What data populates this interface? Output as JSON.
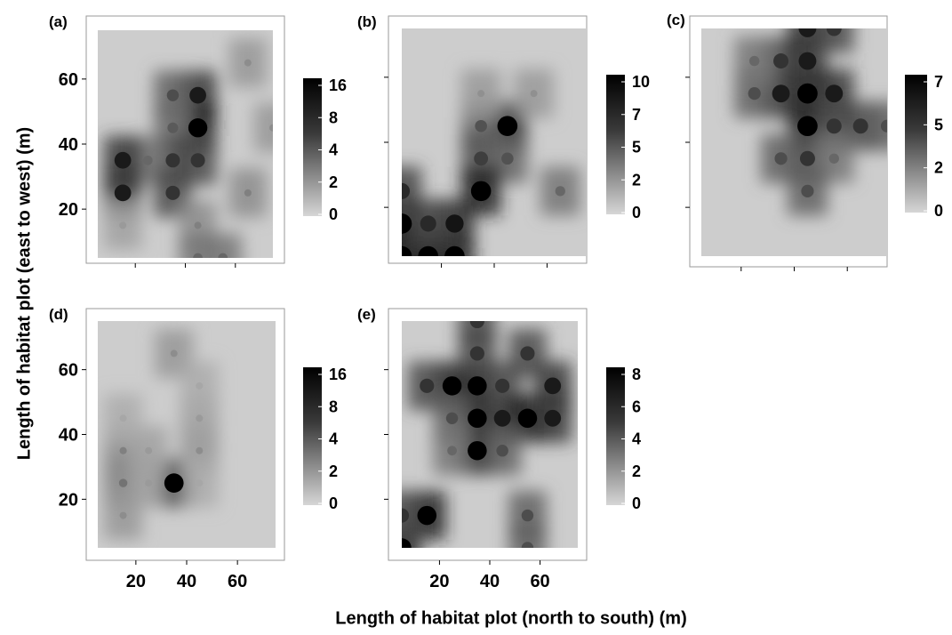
{
  "figure": {
    "ylabel": "Length of habitat plot (east to west) (m)",
    "xlabel": "Length of habitat plot (north to south) (m)",
    "x_ticks": [
      20,
      40,
      60
    ],
    "y_ticks": [
      20,
      40,
      60
    ]
  },
  "chart_data": [
    {
      "type": "heatmap",
      "panel_label": "(a)",
      "x_range": [
        5,
        75
      ],
      "y_range": [
        5,
        75
      ],
      "y_tick_labels_shown": true,
      "x_tick_labels_shown": false,
      "colorbar": {
        "ticks": [
          "16",
          "8",
          "4",
          "2",
          "0"
        ],
        "max": 16
      },
      "hotspots": [
        {
          "x": 45,
          "y": 55,
          "value": 14
        },
        {
          "x": 45,
          "y": 45,
          "value": 16
        },
        {
          "x": 35,
          "y": 55,
          "value": 10
        },
        {
          "x": 35,
          "y": 45,
          "value": 9
        },
        {
          "x": 45,
          "y": 35,
          "value": 12
        },
        {
          "x": 35,
          "y": 35,
          "value": 12
        },
        {
          "x": 25,
          "y": 35,
          "value": 8
        },
        {
          "x": 15,
          "y": 35,
          "value": 14
        },
        {
          "x": 15,
          "y": 25,
          "value": 14
        },
        {
          "x": 35,
          "y": 25,
          "value": 12
        },
        {
          "x": 65,
          "y": 25,
          "value": 6
        },
        {
          "x": 45,
          "y": 15,
          "value": 6
        },
        {
          "x": 15,
          "y": 15,
          "value": 4
        },
        {
          "x": 45,
          "y": 5,
          "value": 8
        },
        {
          "x": 55,
          "y": 5,
          "value": 8
        },
        {
          "x": 65,
          "y": 65,
          "value": 5
        },
        {
          "x": 75,
          "y": 45,
          "value": 5
        }
      ]
    },
    {
      "type": "heatmap",
      "panel_label": "(b)",
      "x_range": [
        5,
        75
      ],
      "y_range": [
        5,
        75
      ],
      "y_tick_labels_shown": false,
      "x_tick_labels_shown": false,
      "colorbar": {
        "ticks": [
          "10",
          "7",
          "5",
          "2",
          "0"
        ],
        "max": 10
      },
      "hotspots": [
        {
          "x": 45,
          "y": 45,
          "value": 10
        },
        {
          "x": 35,
          "y": 45,
          "value": 6
        },
        {
          "x": 35,
          "y": 35,
          "value": 7
        },
        {
          "x": 45,
          "y": 35,
          "value": 6
        },
        {
          "x": 35,
          "y": 25,
          "value": 10
        },
        {
          "x": 5,
          "y": 15,
          "value": 10
        },
        {
          "x": 5,
          "y": 5,
          "value": 10
        },
        {
          "x": 15,
          "y": 5,
          "value": 10
        },
        {
          "x": 25,
          "y": 5,
          "value": 10
        },
        {
          "x": 25,
          "y": 15,
          "value": 9
        },
        {
          "x": 15,
          "y": 15,
          "value": 8
        },
        {
          "x": 5,
          "y": 25,
          "value": 8
        },
        {
          "x": 65,
          "y": 25,
          "value": 5
        },
        {
          "x": 35,
          "y": 55,
          "value": 3
        },
        {
          "x": 55,
          "y": 55,
          "value": 3
        }
      ]
    },
    {
      "type": "heatmap",
      "panel_label": "(c)",
      "x_range": [
        5,
        75
      ],
      "y_range": [
        5,
        75
      ],
      "y_tick_labels_shown": false,
      "x_tick_labels_shown": false,
      "colorbar": {
        "ticks": [
          "7",
          "5",
          "2",
          "0"
        ],
        "max": 8
      },
      "hotspots": [
        {
          "x": 45,
          "y": 45,
          "value": 8
        },
        {
          "x": 45,
          "y": 55,
          "value": 8
        },
        {
          "x": 35,
          "y": 55,
          "value": 7
        },
        {
          "x": 55,
          "y": 55,
          "value": 7
        },
        {
          "x": 35,
          "y": 65,
          "value": 6
        },
        {
          "x": 45,
          "y": 65,
          "value": 7
        },
        {
          "x": 45,
          "y": 75,
          "value": 7
        },
        {
          "x": 55,
          "y": 75,
          "value": 6
        },
        {
          "x": 25,
          "y": 55,
          "value": 5
        },
        {
          "x": 25,
          "y": 65,
          "value": 4
        },
        {
          "x": 55,
          "y": 45,
          "value": 6
        },
        {
          "x": 65,
          "y": 45,
          "value": 6
        },
        {
          "x": 45,
          "y": 35,
          "value": 6
        },
        {
          "x": 35,
          "y": 35,
          "value": 5
        },
        {
          "x": 55,
          "y": 35,
          "value": 4
        },
        {
          "x": 45,
          "y": 25,
          "value": 5
        },
        {
          "x": 75,
          "y": 45,
          "value": 5
        }
      ]
    },
    {
      "type": "heatmap",
      "panel_label": "(d)",
      "x_range": [
        5,
        75
      ],
      "y_range": [
        5,
        75
      ],
      "y_tick_labels_shown": true,
      "x_tick_labels_shown": true,
      "colorbar": {
        "ticks": [
          "16",
          "8",
          "4",
          "2",
          "0"
        ],
        "max": 16
      },
      "hotspots": [
        {
          "x": 35,
          "y": 25,
          "value": 16
        },
        {
          "x": 15,
          "y": 25,
          "value": 7
        },
        {
          "x": 15,
          "y": 35,
          "value": 6
        },
        {
          "x": 25,
          "y": 35,
          "value": 4
        },
        {
          "x": 45,
          "y": 35,
          "value": 5
        },
        {
          "x": 45,
          "y": 45,
          "value": 4
        },
        {
          "x": 15,
          "y": 45,
          "value": 3
        },
        {
          "x": 15,
          "y": 15,
          "value": 5
        },
        {
          "x": 35,
          "y": 65,
          "value": 5
        },
        {
          "x": 45,
          "y": 55,
          "value": 3
        },
        {
          "x": 25,
          "y": 25,
          "value": 4
        },
        {
          "x": 45,
          "y": 25,
          "value": 3
        }
      ]
    },
    {
      "type": "heatmap",
      "panel_label": "(e)",
      "x_range": [
        5,
        75
      ],
      "y_range": [
        5,
        75
      ],
      "y_tick_labels_shown": false,
      "x_tick_labels_shown": true,
      "colorbar": {
        "ticks": [
          "8",
          "6",
          "4",
          "2",
          "0"
        ],
        "max": 8
      },
      "hotspots": [
        {
          "x": 35,
          "y": 35,
          "value": 8
        },
        {
          "x": 35,
          "y": 45,
          "value": 8
        },
        {
          "x": 35,
          "y": 55,
          "value": 8
        },
        {
          "x": 45,
          "y": 45,
          "value": 7
        },
        {
          "x": 45,
          "y": 55,
          "value": 6
        },
        {
          "x": 25,
          "y": 55,
          "value": 8
        },
        {
          "x": 15,
          "y": 55,
          "value": 6
        },
        {
          "x": 35,
          "y": 65,
          "value": 6
        },
        {
          "x": 35,
          "y": 75,
          "value": 6
        },
        {
          "x": 55,
          "y": 45,
          "value": 8
        },
        {
          "x": 65,
          "y": 45,
          "value": 7
        },
        {
          "x": 65,
          "y": 55,
          "value": 7
        },
        {
          "x": 55,
          "y": 65,
          "value": 6
        },
        {
          "x": 45,
          "y": 35,
          "value": 5
        },
        {
          "x": 25,
          "y": 45,
          "value": 5
        },
        {
          "x": 5,
          "y": 5,
          "value": 8
        },
        {
          "x": 15,
          "y": 15,
          "value": 8
        },
        {
          "x": 5,
          "y": 15,
          "value": 6
        },
        {
          "x": 25,
          "y": 35,
          "value": 4
        },
        {
          "x": 55,
          "y": 15,
          "value": 5
        },
        {
          "x": 55,
          "y": 5,
          "value": 5
        }
      ]
    }
  ]
}
